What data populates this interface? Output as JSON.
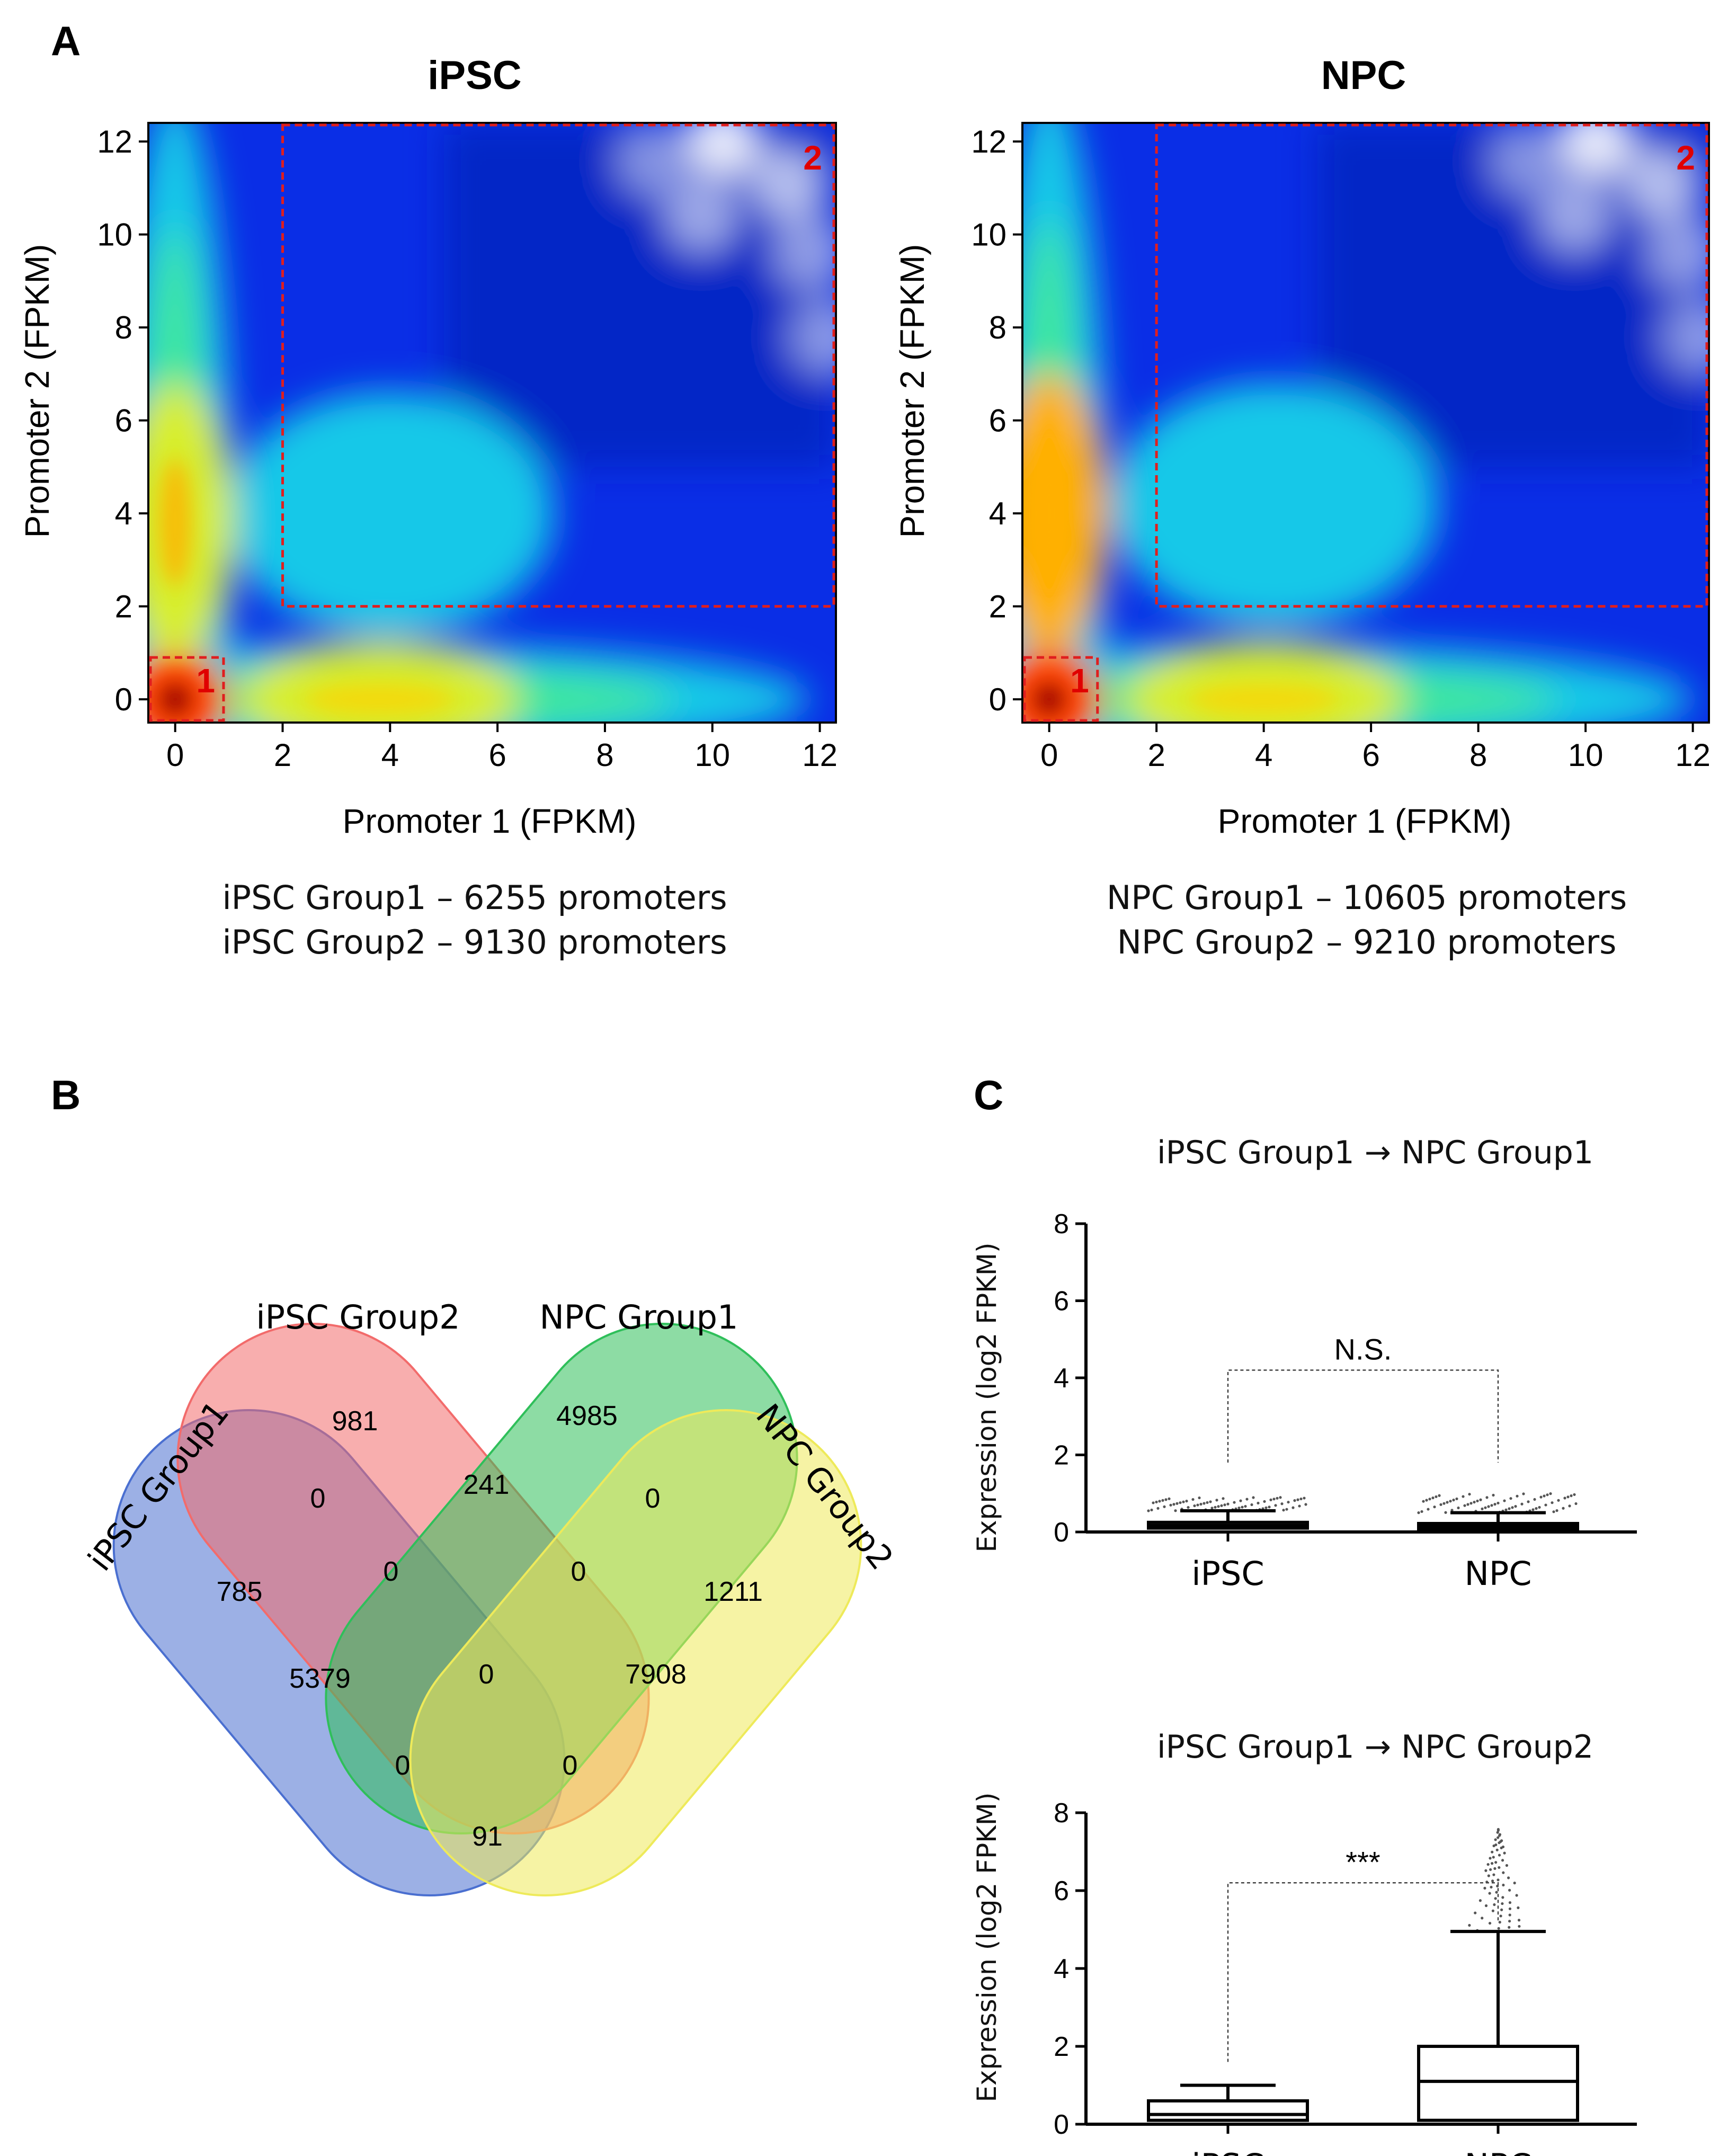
{
  "panel_labels": {
    "a": "A",
    "b": "B",
    "c": "C"
  },
  "colors": {
    "region_box": "#e01e1e",
    "venn_ipsc_group1": "#4a6fd0",
    "venn_ipsc_group2": "#f26b6b",
    "venn_npc_group1": "#2fbf5a",
    "venn_npc_group2": "#eeea5a"
  },
  "chart_data": [
    {
      "type": "heatmap",
      "panel": "A",
      "title": "iPSC",
      "xlabel": "Promoter 1 (FPKM)",
      "ylabel": "Promoter 2 (FPKM)",
      "xlim": [
        -0.5,
        12.3
      ],
      "ylim": [
        -0.5,
        12.4
      ],
      "xticks": [
        0,
        2,
        4,
        6,
        8,
        10,
        12
      ],
      "yticks": [
        0,
        2,
        4,
        6,
        8,
        10,
        12
      ],
      "density_hotspots": [
        {
          "x": 0,
          "y": 0,
          "intensity": 1.0
        },
        {
          "x": 0,
          "y": 3.8,
          "intensity": 0.75
        },
        {
          "x": 3.8,
          "y": 0,
          "intensity": 0.7
        },
        {
          "x": 4,
          "y": 4,
          "intensity": 0.45
        }
      ],
      "regions": [
        {
          "label": "1",
          "x": [
            -0.5,
            0.9
          ],
          "y": [
            -0.5,
            0.9
          ]
        },
        {
          "label": "2",
          "x": [
            2,
            12.3
          ],
          "y": [
            2,
            12.4
          ]
        }
      ],
      "captions": [
        "iPSC Group1 – 6255 promoters",
        "iPSC Group2 – 9130 promoters"
      ]
    },
    {
      "type": "heatmap",
      "panel": "A",
      "title": "NPC",
      "xlabel": "Promoter 1 (FPKM)",
      "ylabel": "Promoter 2 (FPKM)",
      "xlim": [
        -0.5,
        12.3
      ],
      "ylim": [
        -0.5,
        12.4
      ],
      "xticks": [
        0,
        2,
        4,
        6,
        8,
        10,
        12
      ],
      "yticks": [
        0,
        2,
        4,
        6,
        8,
        10,
        12
      ],
      "density_hotspots": [
        {
          "x": 0,
          "y": 0,
          "intensity": 1.0
        },
        {
          "x": 0,
          "y": 4,
          "intensity": 0.8
        },
        {
          "x": 4,
          "y": 0,
          "intensity": 0.72
        },
        {
          "x": 4.2,
          "y": 4.2,
          "intensity": 0.48
        }
      ],
      "regions": [
        {
          "label": "1",
          "x": [
            -0.5,
            0.9
          ],
          "y": [
            -0.5,
            0.9
          ]
        },
        {
          "label": "2",
          "x": [
            2,
            12.3
          ],
          "y": [
            2,
            12.4
          ]
        }
      ],
      "captions": [
        "NPC Group1 – 10605 promoters",
        "NPC Group2 – 9210 promoters"
      ]
    },
    {
      "type": "venn",
      "panel": "B",
      "sets": [
        "iPSC Group1",
        "iPSC Group2",
        "NPC Group1",
        "NPC Group2"
      ],
      "regions": [
        {
          "sets": [
            "iPSC Group1"
          ],
          "value": 785
        },
        {
          "sets": [
            "iPSC Group2"
          ],
          "value": 981
        },
        {
          "sets": [
            "NPC Group1"
          ],
          "value": 4985
        },
        {
          "sets": [
            "NPC Group2"
          ],
          "value": 1211
        },
        {
          "sets": [
            "iPSC Group1",
            "iPSC Group2"
          ],
          "value": 0
        },
        {
          "sets": [
            "iPSC Group2",
            "NPC Group1"
          ],
          "value": 241
        },
        {
          "sets": [
            "NPC Group1",
            "NPC Group2"
          ],
          "value": 0
        },
        {
          "sets": [
            "iPSC Group1",
            "iPSC Group2",
            "NPC Group1"
          ],
          "value": 0
        },
        {
          "sets": [
            "iPSC Group2",
            "NPC Group1",
            "NPC Group2"
          ],
          "value": 0
        },
        {
          "sets": [
            "iPSC Group1",
            "NPC Group1"
          ],
          "value": 5379
        },
        {
          "sets": [
            "iPSC Group2",
            "NPC Group2"
          ],
          "value": 7908
        },
        {
          "sets": [
            "iPSC Group1",
            "iPSC Group2",
            "NPC Group1",
            "NPC Group2"
          ],
          "value": 0
        },
        {
          "sets": [
            "iPSC Group1",
            "NPC Group1",
            "NPC Group2"
          ],
          "value": 0
        },
        {
          "sets": [
            "iPSC Group1",
            "iPSC Group2",
            "NPC Group2"
          ],
          "value": 0
        },
        {
          "sets": [
            "iPSC Group1",
            "NPC Group2"
          ],
          "value": 91
        }
      ]
    },
    {
      "type": "box",
      "panel": "C",
      "title": "iPSC Group1 → NPC Group1",
      "ylabel": "Expression (log2 FPKM)",
      "ylim": [
        0,
        8
      ],
      "yticks": [
        0,
        2,
        4,
        6,
        8
      ],
      "categories": [
        "iPSC",
        "NPC"
      ],
      "boxes": [
        {
          "whisker_low": 0,
          "q1": 0.1,
          "median": 0.17,
          "q3": 0.25,
          "whisker_high": 0.55,
          "outliers_max": 0.9
        },
        {
          "whisker_low": 0,
          "q1": 0.08,
          "median": 0.14,
          "q3": 0.22,
          "whisker_high": 0.5,
          "outliers_max": 1.0
        }
      ],
      "significance": "N.S.",
      "significance_y": 4.2
    },
    {
      "type": "box",
      "panel": "C",
      "title": "iPSC Group1 → NPC Group2",
      "ylabel": "Expression (log2 FPKM)",
      "ylim": [
        0,
        8
      ],
      "yticks": [
        0,
        2,
        4,
        6,
        8
      ],
      "categories": [
        "iPSC",
        "NPC"
      ],
      "boxes": [
        {
          "whisker_low": 0,
          "q1": 0.1,
          "median": 0.25,
          "q3": 0.6,
          "whisker_high": 1.0,
          "outliers_max": 1.0
        },
        {
          "whisker_low": 0,
          "q1": 0.1,
          "median": 1.1,
          "q3": 2.0,
          "whisker_high": 4.95,
          "outliers_max": 7.6
        }
      ],
      "significance": "***",
      "significance_y": 6.2
    }
  ]
}
